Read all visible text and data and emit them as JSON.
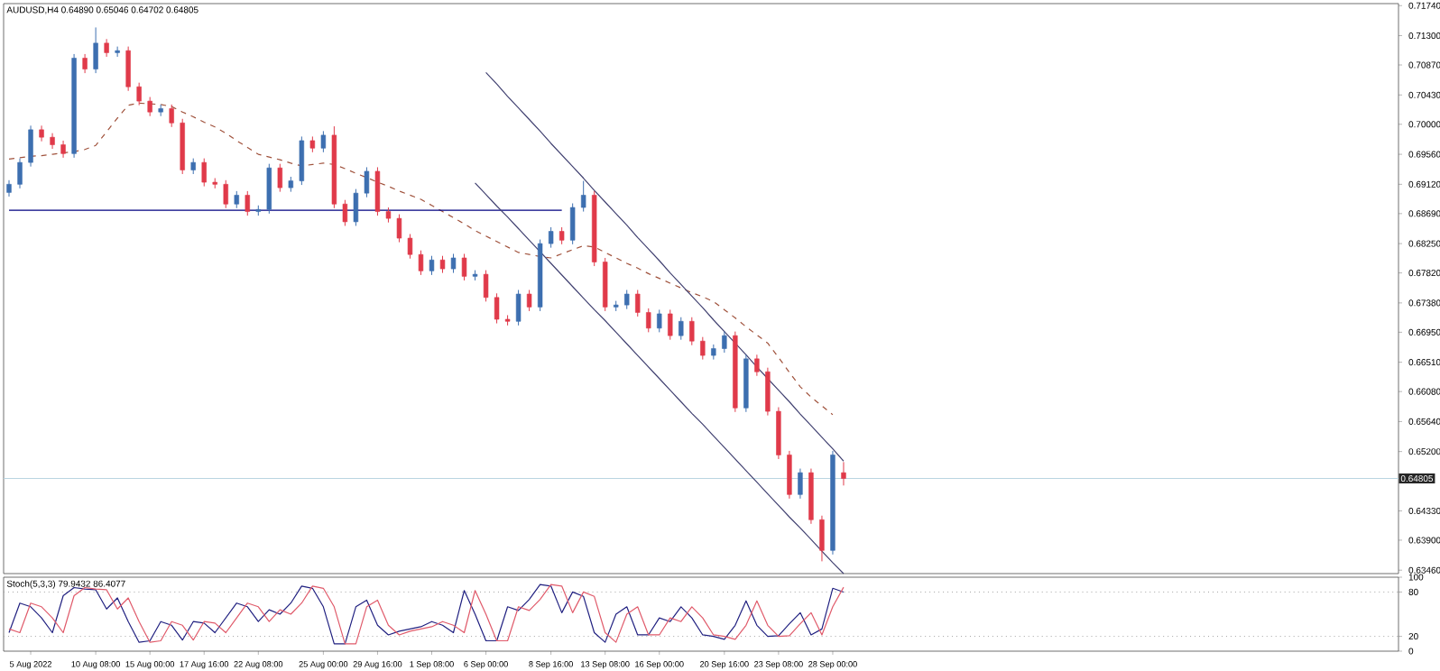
{
  "chart_data": [
    {
      "type": "candlestick",
      "title": "AUDUSD,H4 0.64890 0.65046 0.64702 0.64805",
      "categories": [
        null,
        null,
        null,
        null,
        null,
        null,
        null,
        null,
        null,
        null,
        null,
        null,
        null,
        null,
        null,
        null,
        null,
        null,
        null,
        null,
        null,
        null,
        null,
        null,
        null,
        null,
        null,
        null,
        null,
        null,
        null,
        null,
        null,
        null,
        null,
        null,
        null,
        null,
        null,
        null,
        null,
        null,
        null,
        null,
        null,
        null,
        null,
        null,
        null,
        null,
        null,
        null,
        null,
        null,
        null,
        null,
        null,
        null,
        null,
        null,
        null,
        null,
        null,
        null,
        null,
        null,
        null,
        null,
        null,
        null,
        null,
        null,
        null,
        null,
        null,
        null,
        null,
        null
      ],
      "ohlc": [
        [
          0.69,
          0.6918,
          0.6894,
          0.6912
        ],
        [
          0.6912,
          0.695,
          0.6906,
          0.6944
        ],
        [
          0.6944,
          0.6998,
          0.6938,
          0.6992
        ],
        [
          0.6992,
          0.6998,
          0.6975,
          0.6981
        ],
        [
          0.6981,
          0.6987,
          0.6964,
          0.697
        ],
        [
          0.697,
          0.6976,
          0.6951,
          0.6957
        ],
        [
          0.6957,
          0.7103,
          0.6951,
          0.7097
        ],
        [
          0.7097,
          0.7103,
          0.7075,
          0.7081
        ],
        [
          0.7081,
          0.7142,
          0.7075,
          0.7119
        ],
        [
          0.7119,
          0.7125,
          0.7099,
          0.7105
        ],
        [
          0.7105,
          0.7114,
          0.7099,
          0.7108
        ],
        [
          0.7108,
          0.7114,
          0.7049,
          0.7055
        ],
        [
          0.7055,
          0.7061,
          0.7028,
          0.7034
        ],
        [
          0.7034,
          0.704,
          0.7012,
          0.7018
        ],
        [
          0.7018,
          0.7029,
          0.7012,
          0.7023
        ],
        [
          0.7023,
          0.7029,
          0.6996,
          0.7002
        ],
        [
          0.7002,
          0.7008,
          0.6927,
          0.6933
        ],
        [
          0.6933,
          0.695,
          0.6927,
          0.6944
        ],
        [
          0.6944,
          0.695,
          0.6909,
          0.6915
        ],
        [
          0.6915,
          0.6921,
          0.6906,
          0.6912
        ],
        [
          0.6912,
          0.6918,
          0.6877,
          0.6883
        ],
        [
          0.6883,
          0.6902,
          0.6877,
          0.6896
        ],
        [
          0.6896,
          0.6902,
          0.6866,
          0.6872
        ],
        [
          0.6872,
          0.6881,
          0.6866,
          0.6875
        ],
        [
          0.6875,
          0.6942,
          0.6869,
          0.6936
        ],
        [
          0.6936,
          0.6942,
          0.6901,
          0.6907
        ],
        [
          0.6907,
          0.6923,
          0.6901,
          0.6917
        ],
        [
          0.6917,
          0.6982,
          0.6911,
          0.6976
        ],
        [
          0.6976,
          0.6982,
          0.6959,
          0.6965
        ],
        [
          0.6965,
          0.699,
          0.6959,
          0.6984
        ],
        [
          0.6984,
          0.6997,
          0.6877,
          0.6883
        ],
        [
          0.6883,
          0.6889,
          0.6851,
          0.6857
        ],
        [
          0.6857,
          0.6905,
          0.6851,
          0.6899
        ],
        [
          0.6899,
          0.6937,
          0.6893,
          0.6931
        ],
        [
          0.6931,
          0.6937,
          0.6866,
          0.6872
        ],
        [
          0.6872,
          0.6878,
          0.6856,
          0.6862
        ],
        [
          0.6862,
          0.6868,
          0.6827,
          0.6833
        ],
        [
          0.6833,
          0.6839,
          0.6803,
          0.6809
        ],
        [
          0.6809,
          0.6815,
          0.6779,
          0.6785
        ],
        [
          0.6785,
          0.6807,
          0.6779,
          0.6801
        ],
        [
          0.6801,
          0.6807,
          0.6782,
          0.6788
        ],
        [
          0.6788,
          0.681,
          0.6782,
          0.6804
        ],
        [
          0.6804,
          0.681,
          0.6771,
          0.6777
        ],
        [
          0.6777,
          0.6786,
          0.6771,
          0.678
        ],
        [
          0.678,
          0.6786,
          0.674,
          0.6746
        ],
        [
          0.6746,
          0.6752,
          0.6708,
          0.6714
        ],
        [
          0.6714,
          0.672,
          0.6705,
          0.6711
        ],
        [
          0.6711,
          0.6757,
          0.6705,
          0.6751
        ],
        [
          0.6751,
          0.6757,
          0.6726,
          0.6732
        ],
        [
          0.6732,
          0.6831,
          0.6726,
          0.6825
        ],
        [
          0.6825,
          0.6849,
          0.6819,
          0.6843
        ],
        [
          0.6843,
          0.6849,
          0.6824,
          0.683
        ],
        [
          0.683,
          0.6884,
          0.6824,
          0.6878
        ],
        [
          0.6878,
          0.6917,
          0.6872,
          0.6896
        ],
        [
          0.6896,
          0.6902,
          0.6792,
          0.6798
        ],
        [
          0.6798,
          0.6804,
          0.6726,
          0.6732
        ],
        [
          0.6732,
          0.6741,
          0.6726,
          0.6735
        ],
        [
          0.6735,
          0.6757,
          0.6729,
          0.6751
        ],
        [
          0.6751,
          0.6757,
          0.6718,
          0.6724
        ],
        [
          0.6724,
          0.673,
          0.6695,
          0.6701
        ],
        [
          0.6701,
          0.6728,
          0.6695,
          0.6722
        ],
        [
          0.6722,
          0.6728,
          0.6684,
          0.669
        ],
        [
          0.669,
          0.6717,
          0.6684,
          0.6711
        ],
        [
          0.6711,
          0.6717,
          0.6676,
          0.6682
        ],
        [
          0.6682,
          0.6688,
          0.6655,
          0.6661
        ],
        [
          0.6661,
          0.6677,
          0.6655,
          0.6671
        ],
        [
          0.6671,
          0.6696,
          0.6665,
          0.669
        ],
        [
          0.669,
          0.6696,
          0.6578,
          0.6584
        ],
        [
          0.6584,
          0.6662,
          0.6578,
          0.6656
        ],
        [
          0.6656,
          0.6662,
          0.6631,
          0.6637
        ],
        [
          0.6637,
          0.6643,
          0.6573,
          0.6579
        ],
        [
          0.6579,
          0.6585,
          0.6509,
          0.6515
        ],
        [
          0.6515,
          0.6521,
          0.6451,
          0.6457
        ],
        [
          0.6457,
          0.6495,
          0.6451,
          0.6489
        ],
        [
          0.6489,
          0.6495,
          0.6414,
          0.642
        ],
        [
          0.642,
          0.6426,
          0.6359,
          0.6375
        ],
        [
          0.6375,
          0.6521,
          0.6369,
          0.6515
        ],
        [
          0.6489,
          0.65046,
          0.64702,
          0.64805
        ]
      ],
      "colors": [
        "#3d6fb0",
        "#3d6fb0",
        "#3d6fb0",
        "#e03a4a",
        "#e03a4a",
        "#e03a4a",
        "#3d6fb0",
        "#e03a4a",
        "#3d6fb0",
        "#e03a4a",
        "#3d6fb0",
        "#e03a4a",
        "#e03a4a",
        "#e03a4a",
        "#3d6fb0",
        "#e03a4a",
        "#e03a4a",
        "#3d6fb0",
        "#e03a4a",
        "#e03a4a",
        "#e03a4a",
        "#3d6fb0",
        "#e03a4a",
        "#3d6fb0",
        "#3d6fb0",
        "#e03a4a",
        "#3d6fb0",
        "#3d6fb0",
        "#e03a4a",
        "#3d6fb0",
        "#e03a4a",
        "#e03a4a",
        "#3d6fb0",
        "#3d6fb0",
        "#e03a4a",
        "#e03a4a",
        "#e03a4a",
        "#e03a4a",
        "#e03a4a",
        "#3d6fb0",
        "#e03a4a",
        "#3d6fb0",
        "#e03a4a",
        "#3d6fb0",
        "#e03a4a",
        "#e03a4a",
        "#e03a4a",
        "#3d6fb0",
        "#e03a4a",
        "#3d6fb0",
        "#3d6fb0",
        "#e03a4a",
        "#3d6fb0",
        "#3d6fb0",
        "#e03a4a",
        "#e03a4a",
        "#3d6fb0",
        "#3d6fb0",
        "#e03a4a",
        "#e03a4a",
        "#3d6fb0",
        "#e03a4a",
        "#3d6fb0",
        "#e03a4a",
        "#e03a4a",
        "#3d6fb0",
        "#3d6fb0",
        "#e03a4a",
        "#3d6fb0",
        "#e03a4a",
        "#e03a4a",
        "#e03a4a",
        "#e03a4a",
        "#3d6fb0",
        "#e03a4a",
        "#e03a4a",
        "#3d6fb0",
        "#e03a4a"
      ],
      "series": [
        {
          "type": "line",
          "color": "#a0523c",
          "line_style": "dashed",
          "values": [
            0.6949,
            0.6951,
            0.6953,
            0.6954,
            0.6956,
            0.6958,
            0.696,
            0.6963,
            0.6969,
            0.6989,
            0.7009,
            0.7028,
            0.7031,
            0.703,
            0.7029,
            0.7026,
            0.7018,
            0.7011,
            0.7003,
            0.6996,
            0.6987,
            0.6976,
            0.6966,
            0.6956,
            0.6952,
            0.6948,
            0.6943,
            0.6939,
            0.6941,
            0.6943,
            0.6941,
            0.6935,
            0.6928,
            0.6922,
            0.6915,
            0.6909,
            0.6902,
            0.6896,
            0.689,
            0.6881,
            0.6872,
            0.6863,
            0.6854,
            0.6844,
            0.6836,
            0.6828,
            0.682,
            0.6812,
            0.6809,
            0.6806,
            0.6804,
            0.681,
            0.6816,
            0.6822,
            0.682,
            0.6812,
            0.6804,
            0.6796,
            0.6789,
            0.6781,
            0.6774,
            0.6767,
            0.676,
            0.6753,
            0.6747,
            0.674,
            0.6728,
            0.6716,
            0.6703,
            0.6691,
            0.6679,
            0.6658,
            0.6636,
            0.6615,
            0.66,
            0.6587,
            0.6574,
            null
          ]
        },
        {
          "type": "line",
          "color": "#000080",
          "values": [
            0.6874,
            0.6874,
            0.6874,
            0.6874,
            0.6874,
            0.6874,
            0.6874,
            0.6874,
            0.6874,
            0.6874,
            0.6874,
            0.6874,
            0.6874,
            0.6874,
            0.6874,
            0.6874,
            0.6874,
            0.6874,
            0.6874,
            0.6874,
            0.6874,
            0.6874,
            0.6874,
            0.6874,
            0.6874,
            0.6874,
            0.6874,
            0.6874,
            0.6874,
            0.6874,
            0.6874,
            0.6874,
            0.6874,
            0.6874,
            0.6874,
            0.6874,
            0.6874,
            0.6874,
            0.6874,
            0.6874,
            0.6874,
            0.6874,
            0.6874,
            0.6874,
            0.6874,
            0.6874,
            0.6874,
            0.6874,
            0.6874,
            0.6874,
            0.6874,
            0.6874,
            null,
            null,
            null,
            null,
            null,
            null,
            null,
            null,
            null,
            null,
            null,
            null,
            null,
            null,
            null,
            null,
            null,
            null,
            null,
            null,
            null,
            null,
            null,
            null,
            null,
            null
          ]
        },
        {
          "type": "line",
          "color": "#404070",
          "values": [
            null,
            null,
            null,
            null,
            null,
            null,
            null,
            null,
            null,
            null,
            null,
            null,
            null,
            null,
            null,
            null,
            null,
            null,
            null,
            null,
            null,
            null,
            null,
            null,
            null,
            null,
            null,
            null,
            null,
            null,
            null,
            null,
            null,
            null,
            null,
            null,
            null,
            null,
            null,
            null,
            null,
            null,
            null,
            null,
            0.7076,
            0.7059,
            0.7041,
            0.7024,
            0.7007,
            0.699,
            0.6972,
            0.6955,
            0.6938,
            0.6921,
            0.6903,
            0.6886,
            0.6869,
            0.6852,
            0.6834,
            0.6817,
            0.68,
            0.6782,
            0.6765,
            0.6748,
            0.6731,
            0.6713,
            0.6696,
            0.6679,
            0.6662,
            0.6644,
            0.6627,
            0.661,
            0.6593,
            0.6575,
            0.6558,
            0.6541,
            0.6524,
            0.6506
          ]
        },
        {
          "type": "line",
          "color": "#404070",
          "values": [
            null,
            null,
            null,
            null,
            null,
            null,
            null,
            null,
            null,
            null,
            null,
            null,
            null,
            null,
            null,
            null,
            null,
            null,
            null,
            null,
            null,
            null,
            null,
            null,
            null,
            null,
            null,
            null,
            null,
            null,
            null,
            null,
            null,
            null,
            null,
            null,
            null,
            null,
            null,
            null,
            null,
            null,
            null,
            0.6914,
            0.6897,
            0.688,
            0.6864,
            0.6847,
            0.683,
            0.6813,
            0.6796,
            0.6779,
            0.6762,
            0.6745,
            0.6728,
            0.6712,
            0.6695,
            0.6678,
            0.6661,
            0.6644,
            0.6627,
            0.661,
            0.6593,
            0.6576,
            0.656,
            0.6543,
            0.6526,
            0.6509,
            0.6492,
            0.6475,
            0.6458,
            0.6441,
            0.6424,
            0.6408,
            0.6391,
            0.6374,
            0.6357,
            0.6341
          ]
        }
      ],
      "ylim": [
        0.6341,
        0.7177
      ],
      "yticks": [
        {
          "value": 0.7174,
          "label": "0.71740"
        },
        {
          "value": 0.713,
          "label": "0.71300"
        },
        {
          "value": 0.7087,
          "label": "0.70870"
        },
        {
          "value": 0.7043,
          "label": "0.70430"
        },
        {
          "value": 0.7,
          "label": "0.70000"
        },
        {
          "value": 0.6956,
          "label": "0.69560"
        },
        {
          "value": 0.6912,
          "label": "0.69120"
        },
        {
          "value": 0.6869,
          "label": "0.68690"
        },
        {
          "value": 0.6825,
          "label": "0.68250"
        },
        {
          "value": 0.6782,
          "label": "0.67820"
        },
        {
          "value": 0.6738,
          "label": "0.67380"
        },
        {
          "value": 0.6695,
          "label": "0.66950"
        },
        {
          "value": 0.6651,
          "label": "0.66510"
        },
        {
          "value": 0.6608,
          "label": "0.66080"
        },
        {
          "value": 0.6564,
          "label": "0.65640"
        },
        {
          "value": 0.652,
          "label": "0.65200"
        },
        {
          "value": 0.6433,
          "label": "0.64330"
        },
        {
          "value": 0.639,
          "label": "0.63900"
        },
        {
          "value": 0.6346,
          "label": "0.63460"
        }
      ],
      "tick_labels": "y",
      "marker": "none",
      "ref_lines": [
        {
          "axis": "y",
          "value": 0.64805,
          "label": "0.64805",
          "color": "#b8d4e0"
        }
      ]
    },
    {
      "type": "line",
      "title": "Stoch(5,3,3) 79.9432 86.4077",
      "categories": [
        null,
        null,
        "5 Aug 2022",
        null,
        null,
        null,
        null,
        null,
        "10 Aug 08:00",
        null,
        null,
        null,
        null,
        "15 Aug 00:00",
        null,
        null,
        null,
        null,
        "17 Aug 16:00",
        null,
        null,
        null,
        null,
        "22 Aug 08:00",
        null,
        null,
        null,
        null,
        null,
        "25 Aug 00:00",
        null,
        null,
        null,
        null,
        "29 Aug 16:00",
        null,
        null,
        null,
        null,
        "1 Sep 08:00",
        null,
        null,
        null,
        null,
        "6 Sep 00:00",
        null,
        null,
        null,
        null,
        null,
        "8 Sep 16:00",
        null,
        null,
        null,
        null,
        "13 Sep 08:00",
        null,
        null,
        null,
        null,
        "16 Sep 00:00",
        null,
        null,
        null,
        null,
        null,
        "20 Sep 16:00",
        null,
        null,
        null,
        null,
        "23 Sep 08:00",
        null,
        null,
        null,
        null,
        "28 Sep 00:00",
        null
      ],
      "series": [
        {
          "color": "#202080",
          "values": [
            25,
            65,
            60,
            45,
            25,
            75,
            86,
            84,
            83,
            57,
            72,
            40,
            12,
            14,
            40,
            35,
            15,
            40,
            38,
            25,
            45,
            65,
            60,
            40,
            56,
            50,
            65,
            88,
            85,
            60,
            10,
            10,
            60,
            69,
            35,
            22,
            27,
            30,
            33,
            40,
            35,
            25,
            82,
            50,
            14,
            14,
            60,
            55,
            70,
            90,
            88,
            52,
            80,
            74,
            25,
            12,
            50,
            60,
            22,
            22,
            45,
            40,
            60,
            45,
            22,
            20,
            16,
            35,
            68,
            35,
            20,
            21,
            37,
            52,
            22,
            30,
            85,
            79.9
          ]
        },
        {
          "color": "#e05a6a",
          "values": [
            30,
            25,
            65,
            60,
            45,
            25,
            75,
            86,
            84,
            83,
            57,
            72,
            40,
            12,
            14,
            40,
            35,
            15,
            40,
            38,
            25,
            45,
            65,
            60,
            40,
            56,
            50,
            65,
            88,
            85,
            60,
            10,
            10,
            60,
            69,
            35,
            22,
            27,
            30,
            33,
            40,
            35,
            25,
            82,
            50,
            14,
            14,
            60,
            55,
            70,
            90,
            88,
            52,
            80,
            74,
            25,
            12,
            50,
            60,
            22,
            22,
            45,
            40,
            60,
            45,
            22,
            20,
            16,
            35,
            68,
            35,
            20,
            21,
            37,
            52,
            22,
            60,
            86.4
          ]
        }
      ],
      "ylim": [
        0,
        100
      ],
      "yticks": [
        100,
        80,
        20,
        0
      ],
      "marker": "none",
      "ref_lines": [
        {
          "axis": "y",
          "value": 80,
          "color": "#a0a0a0",
          "line_style": "dotted"
        },
        {
          "axis": "y",
          "value": 20,
          "color": "#a0a0a0",
          "line_style": "dotted"
        }
      ]
    }
  ]
}
